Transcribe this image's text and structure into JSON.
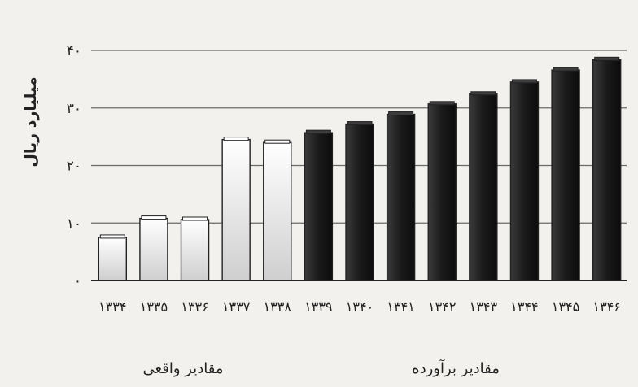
{
  "chart_data": {
    "type": "bar",
    "ylabel": "میلیارد ریال",
    "ylim": [
      0,
      40
    ],
    "yticks": [
      0,
      10,
      20,
      30,
      40
    ],
    "ytick_labels": [
      "۰",
      "۱۰",
      "۲۰",
      "۳۰",
      "۴۰"
    ],
    "grid": true,
    "categories": [
      "۱۳۳۴",
      "۱۳۳۵",
      "۱۳۳۶",
      "۱۳۳۷",
      "۱۳۳۸",
      "۱۳۳۹",
      "۱۳۴۰",
      "۱۳۴۱",
      "۱۳۴۲",
      "۱۳۴۳",
      "۱۳۴۴",
      "۱۳۴۵",
      "۱۳۴۶"
    ],
    "series": [
      {
        "name": "مقادیر واقعی",
        "color": "#fafafa",
        "values": [
          7.5,
          10.8,
          10.6,
          24.5,
          24.0,
          null,
          null,
          null,
          null,
          null,
          null,
          null,
          null
        ]
      },
      {
        "name": "مقادیر برآورده",
        "color": "#1c1c1c",
        "values": [
          null,
          null,
          null,
          null,
          null,
          25.7,
          27.2,
          28.9,
          30.7,
          32.4,
          34.5,
          36.6,
          38.4
        ]
      }
    ],
    "group_labels": [
      "مقادیر واقعی",
      "مقادیر برآورده"
    ]
  }
}
